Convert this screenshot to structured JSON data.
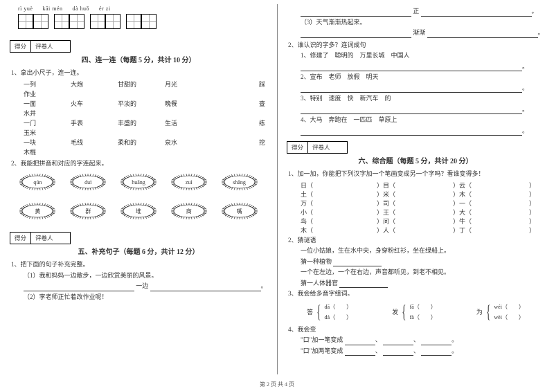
{
  "left": {
    "pinyin": [
      "rì  yuè",
      "kāi   mén",
      "dà huǒ",
      "ér   zi"
    ],
    "scoreLabels": {
      "score": "得分",
      "reviewer": "评卷人"
    },
    "section4": {
      "title": "四、连一连（每题 5 分，共计 10 分）",
      "q1": "1、拿出小尺子，连一连。",
      "rows": [
        [
          "一列",
          "大炮",
          "甘甜的",
          "月光",
          "",
          "踩"
        ],
        [
          "作业",
          "",
          "",
          "",
          "",
          ""
        ],
        [
          "一面",
          "火车",
          "平淡的",
          "晚餐",
          "",
          "查"
        ],
        [
          "水井",
          "",
          "",
          "",
          "",
          ""
        ],
        [
          "一门",
          "手表",
          "丰盛的",
          "生活",
          "",
          "练"
        ],
        [
          "玉米",
          "",
          "",
          "",
          "",
          ""
        ],
        [
          "一块",
          "毛线",
          "柔和的",
          "泉水",
          "",
          "挖"
        ],
        [
          "木棍",
          "",
          "",
          "",
          "",
          ""
        ]
      ],
      "q2": "2、我能把拼音和对应的字连起来。",
      "sunTop": [
        "qún",
        "duī",
        "huāng",
        "zuì",
        "shāng"
      ],
      "sunBot": [
        "黄",
        "群",
        "堆",
        "商",
        "嘴"
      ]
    },
    "section5": {
      "title": "五、补充句子（每题 6 分，共计 12 分）",
      "q1": "1、把下面的句子补充完整。",
      "line1": "（1）我和妈妈一边散步，一边欣赏美丽的风景。",
      "line1b": "一边",
      "line2": "（2）李老师正忙着改作业呢！"
    }
  },
  "right": {
    "top": {
      "zheng": "正",
      "line3": "（3）天气渐渐热起来。",
      "jianjian": "渐渐"
    },
    "q2": {
      "title": "2、谁认识的字多？连词成句",
      "items": [
        "1、修建了　聪明的　万里长城　中国人",
        "2、宣布　老师　放假　明天",
        "3、特别　速度　快　新汽车　的",
        "4、大马　奔跑在　一匹匹　草原上"
      ]
    },
    "scoreLabels": {
      "score": "得分",
      "reviewer": "评卷人"
    },
    "section6": {
      "title": "六、综合题（每题 5 分，共计 20 分）",
      "q1": "1、加一加，你能把下列汉字加一个笔画变成另一个字吗？看谁变得多！",
      "grid": [
        [
          "日（",
          "）目（",
          "）云（",
          "）"
        ],
        [
          "土（",
          "）米（",
          "）木（",
          "）"
        ],
        [
          "万（",
          "）司（",
          "）一（",
          "）"
        ],
        [
          "小（",
          "）王（",
          "）大（",
          "）"
        ],
        [
          "鸟（",
          "）问（",
          "）牛（",
          "）"
        ],
        [
          "木（",
          "）人（",
          "）丁（",
          "）"
        ]
      ],
      "q2": "2、猜谜语",
      "riddle1a": "一位小姑娘，生在水中央，身穿粉红衫，坐在绿船上。",
      "riddle1b": "猜一种植物",
      "riddle2a": "一个在左边，一个在右边，声音都听见，到老不相见。",
      "riddle2b": "猜一人体器官",
      "q3": "3、我会给多音字组词。",
      "poly": [
        {
          "char": "答",
          "top": "dā（",
          "bot": "dá（"
        },
        {
          "char": "发",
          "top": "fā（",
          "bot": "fà（"
        },
        {
          "char": "为",
          "top": "wéi（",
          "bot": "wèi（"
        }
      ],
      "close": "）",
      "q4": "4、我会变",
      "q4a": "\"口\"加一笔变成",
      "q4b": "\"口\"加两笔变成"
    }
  },
  "footer": "第 2 页  共 4 页"
}
